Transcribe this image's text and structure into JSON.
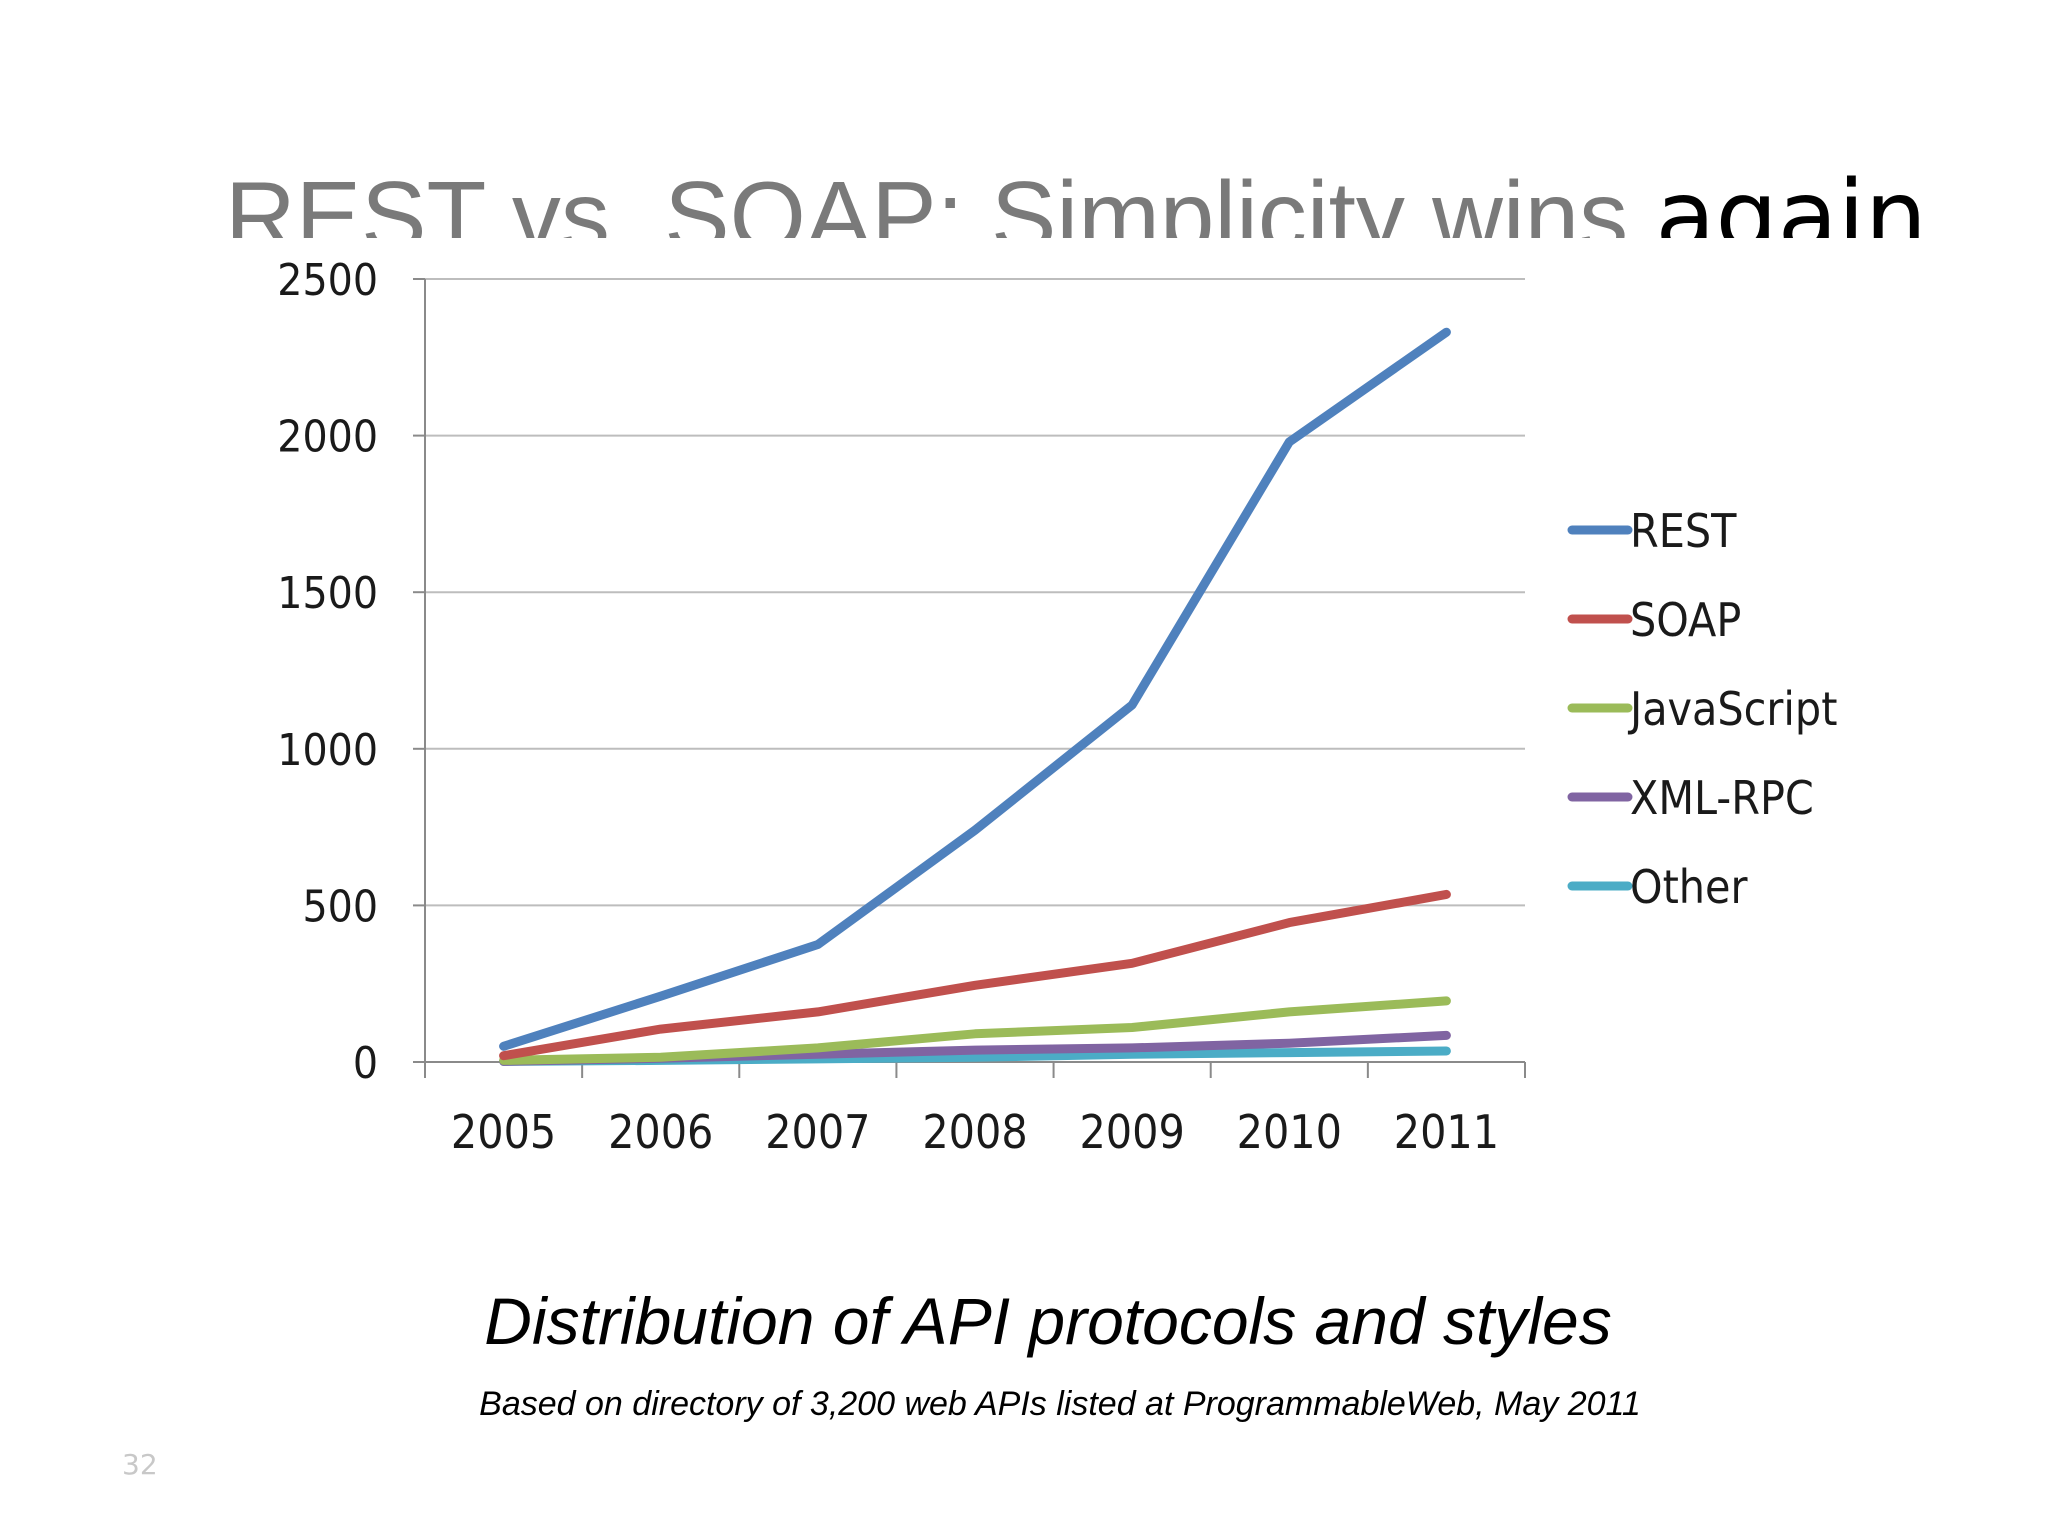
{
  "slide": {
    "title_grey": "REST vs. SOAP: Simplicity wins",
    "title_dark": "again",
    "caption": "Distribution of API protocols and styles",
    "source": "Based on directory of 3,200 web APIs listed at ProgrammableWeb, May 2011",
    "page_number": "32"
  },
  "chart_data": {
    "type": "line",
    "title": "",
    "xlabel": "",
    "ylabel": "",
    "x": [
      "2005",
      "2006",
      "2007",
      "2008",
      "2009",
      "2010",
      "2011"
    ],
    "ylim": [
      0,
      2500
    ],
    "yticks": [
      0,
      500,
      1000,
      1500,
      2000,
      2500
    ],
    "grid": true,
    "legend_position": "right",
    "series": [
      {
        "name": "REST",
        "color": "#4f81bd",
        "values": [
          50,
          210,
          375,
          740,
          1140,
          1980,
          2330
        ]
      },
      {
        "name": "SOAP",
        "color": "#c0504d",
        "values": [
          20,
          105,
          160,
          245,
          315,
          445,
          535
        ]
      },
      {
        "name": "JavaScript",
        "color": "#9bbb59",
        "values": [
          5,
          15,
          45,
          90,
          110,
          160,
          195
        ]
      },
      {
        "name": "XML-RPC",
        "color": "#8064a2",
        "values": [
          2,
          12,
          25,
          38,
          45,
          60,
          85
        ]
      },
      {
        "name": "Other",
        "color": "#4bacc6",
        "values": [
          2,
          5,
          10,
          15,
          25,
          30,
          35
        ]
      }
    ]
  }
}
